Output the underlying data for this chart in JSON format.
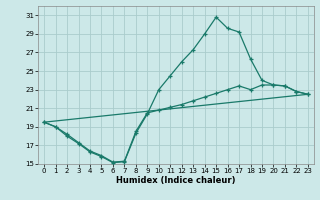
{
  "xlabel": "Humidex (Indice chaleur)",
  "bg_color": "#cce8e8",
  "grid_color": "#aacccc",
  "line_color": "#1a7a6a",
  "xlim": [
    -0.5,
    23.5
  ],
  "ylim": [
    15,
    32
  ],
  "yticks": [
    15,
    17,
    19,
    21,
    23,
    25,
    27,
    29,
    31
  ],
  "xticks": [
    0,
    1,
    2,
    3,
    4,
    5,
    6,
    7,
    8,
    9,
    10,
    11,
    12,
    13,
    14,
    15,
    16,
    17,
    18,
    19,
    20,
    21,
    22,
    23
  ],
  "line1_x": [
    0,
    1,
    2,
    3,
    4,
    5,
    6,
    7,
    8,
    9,
    10,
    11,
    12,
    13,
    14,
    15,
    16,
    17,
    18,
    19,
    20,
    21,
    22,
    23
  ],
  "line1_y": [
    19.5,
    19.0,
    18.0,
    17.2,
    16.3,
    15.8,
    15.15,
    15.25,
    18.3,
    20.4,
    23.0,
    24.5,
    26.0,
    27.3,
    29.0,
    30.8,
    29.6,
    29.2,
    26.3,
    24.0,
    23.5,
    23.4,
    22.8,
    22.5
  ],
  "line2_x": [
    0,
    1,
    2,
    3,
    4,
    5,
    6,
    7,
    8,
    9,
    10,
    11,
    12,
    13,
    14,
    15,
    16,
    17,
    18,
    19,
    20,
    21,
    22,
    23
  ],
  "line2_y": [
    19.5,
    19.0,
    18.2,
    17.3,
    16.4,
    15.9,
    15.2,
    15.3,
    18.5,
    20.5,
    20.8,
    21.1,
    21.4,
    21.8,
    22.2,
    22.6,
    23.0,
    23.4,
    23.0,
    23.5,
    23.5,
    23.4,
    22.8,
    22.5
  ],
  "line3_x": [
    0,
    23
  ],
  "line3_y": [
    19.5,
    22.5
  ]
}
